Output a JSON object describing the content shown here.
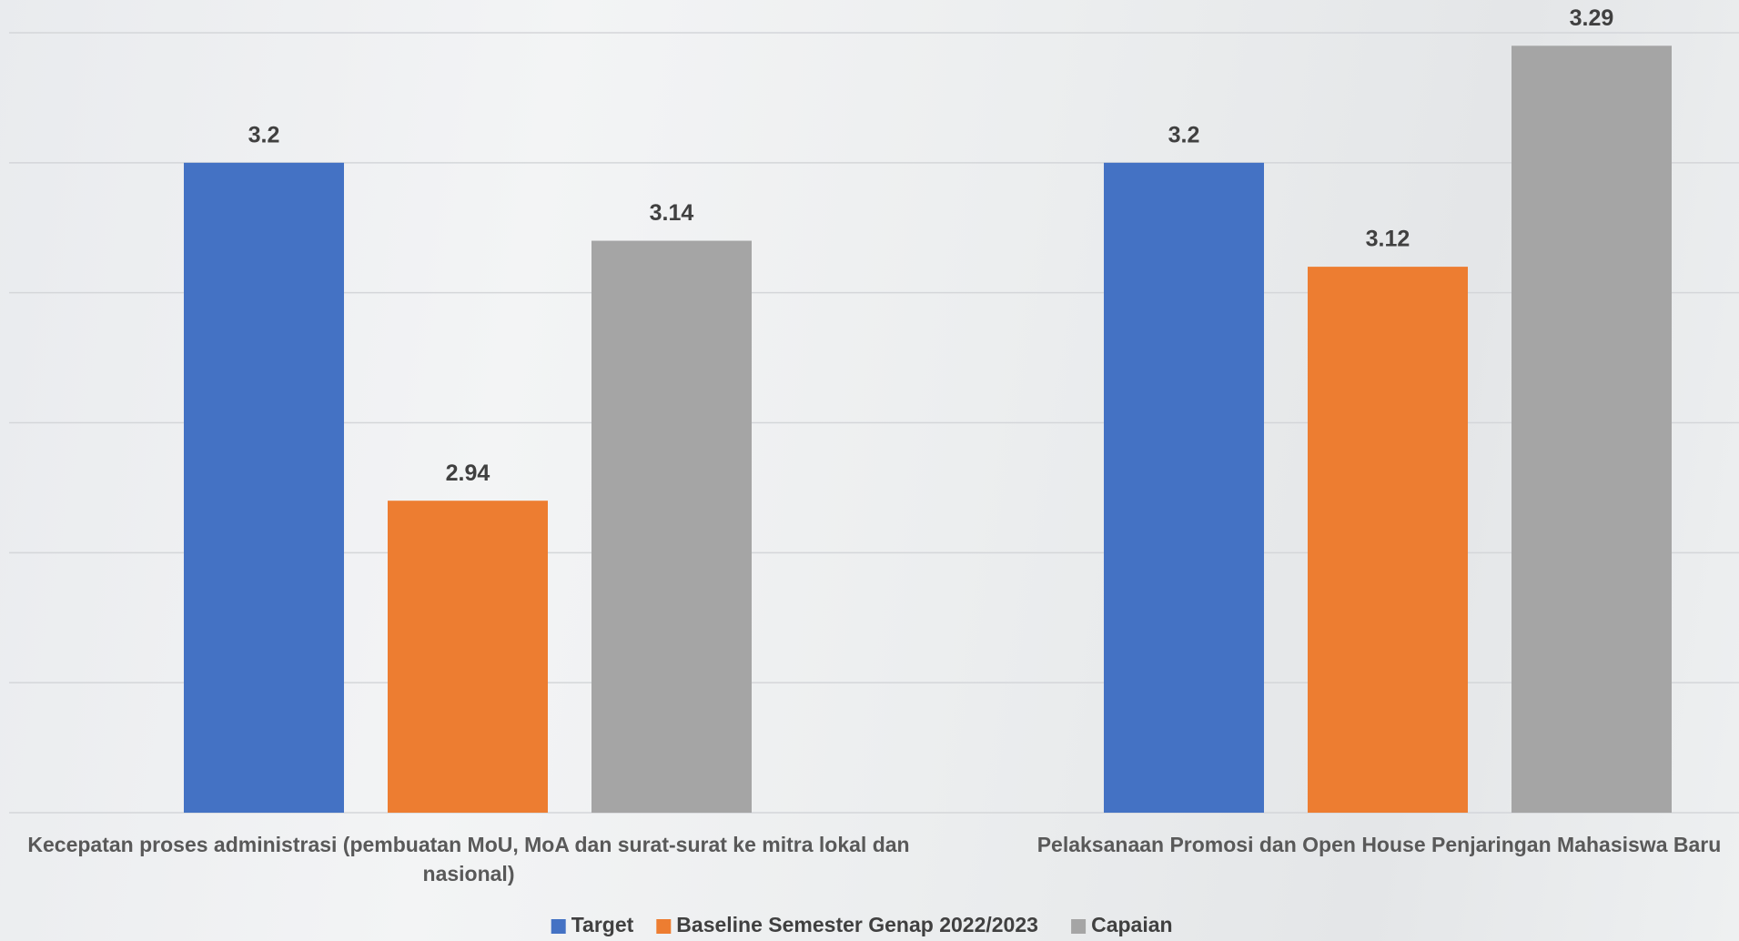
{
  "chart_data": {
    "type": "bar",
    "categories": [
      "Kecepatan proses administrasi (pembuatan MoU, MoA dan surat-surat ke mitra lokal dan nasional)",
      "Pelaksanaan Promosi dan Open House Penjaringan Mahasiswa Baru"
    ],
    "series": [
      {
        "name": "Target",
        "color": "#4472c4",
        "values": [
          3.2,
          3.2
        ]
      },
      {
        "name": "Baseline Semester Genap 2022/2023",
        "color": "#ed7d31",
        "values": [
          2.94,
          3.12
        ]
      },
      {
        "name": "Capaian",
        "color": "#a5a5a5",
        "values": [
          3.14,
          3.29
        ]
      }
    ],
    "ylim": [
      2.7,
      3.3
    ],
    "yticks": [
      2.7,
      2.8,
      2.9,
      3.0,
      3.1,
      3.2,
      3.3
    ],
    "grid": true,
    "legend": "bottom"
  }
}
